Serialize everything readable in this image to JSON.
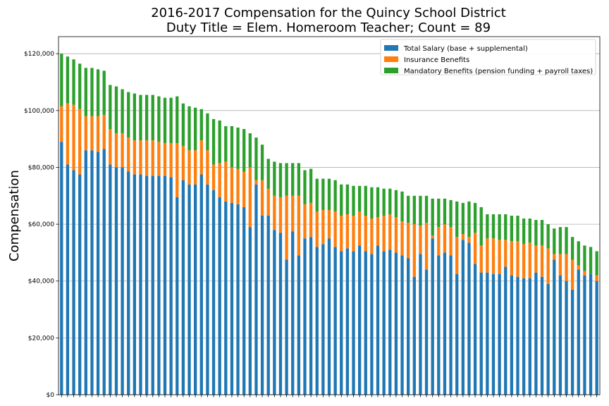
{
  "chart_data": {
    "type": "bar",
    "stacked": true,
    "title_line1": "2016-2017 Compensation for the Quincy School District",
    "title_line2": "Duty Title = Elem. Homeroom Teacher; Count = 89",
    "xlabel": "",
    "ylabel": "Compensation",
    "ylim": [
      0,
      126000
    ],
    "yticks": [
      0,
      20000,
      40000,
      60000,
      80000,
      100000,
      120000
    ],
    "ytick_labels": [
      "$0",
      "$20,000",
      "$40,000",
      "$60,000",
      "$80,000",
      "$100,000",
      "$120,000"
    ],
    "grid": "horizontal",
    "legend_position": "top-right",
    "colors": {
      "salary": "#1f77b4",
      "insurance": "#ff7f0e",
      "mandatory": "#2ca02c"
    },
    "series": [
      {
        "name": "Total Salary (base + supplemental)",
        "key": "salary",
        "values": [
          89000,
          81000,
          79000,
          77500,
          86000,
          86000,
          85500,
          86500,
          81000,
          80000,
          80000,
          78500,
          77500,
          77500,
          77000,
          77000,
          77000,
          77000,
          76500,
          69500,
          75500,
          74000,
          74000,
          77500,
          74000,
          72000,
          69500,
          68000,
          67500,
          67000,
          66000,
          59000,
          74000,
          63000,
          63000,
          58000,
          57000,
          47500,
          57500,
          49000,
          55000,
          55500,
          52000,
          53000,
          55000,
          52000,
          50500,
          51500,
          50500,
          52500,
          50500,
          49500,
          52500,
          50500,
          51000,
          50000,
          49000,
          48000,
          41500,
          49500,
          44000,
          55000,
          49000,
          50000,
          49000,
          42500,
          54500,
          53500,
          46000,
          43000,
          43000,
          42500,
          42500,
          45000,
          42000,
          41500,
          41000,
          41000,
          43000,
          41500,
          39000,
          47500,
          42000,
          40000,
          37000,
          44000,
          42000,
          42500,
          40000
        ]
      },
      {
        "name": "Insurance Benefits",
        "key": "insurance",
        "values": [
          12500,
          21500,
          23000,
          23000,
          12000,
          12000,
          12500,
          12000,
          12500,
          12000,
          12000,
          12000,
          12000,
          12000,
          12500,
          12500,
          12000,
          11500,
          12000,
          19000,
          12000,
          12000,
          12000,
          12000,
          12000,
          9000,
          12000,
          14000,
          12500,
          12500,
          12500,
          21000,
          1500,
          12500,
          9500,
          12000,
          12500,
          22500,
          12500,
          21000,
          12000,
          12000,
          12500,
          12000,
          10000,
          12500,
          12500,
          12000,
          12500,
          12000,
          12500,
          12500,
          10000,
          12500,
          12500,
          12500,
          12000,
          12500,
          18500,
          10000,
          16500,
          1000,
          10000,
          10000,
          10000,
          13000,
          2000,
          2000,
          11000,
          9500,
          12000,
          12500,
          12000,
          9500,
          12000,
          12500,
          12000,
          12500,
          9500,
          11000,
          12500,
          2000,
          7500,
          9500,
          10500,
          1500,
          1500,
          0,
          2000
        ]
      },
      {
        "name": "Mandatory Benefits (pension funding + payroll taxes)",
        "key": "mandatory",
        "values": [
          18500,
          16500,
          16000,
          16000,
          17000,
          17000,
          16500,
          15500,
          15500,
          16500,
          15500,
          16000,
          16500,
          16000,
          16000,
          16000,
          16000,
          16000,
          16000,
          16500,
          15000,
          15500,
          15000,
          11000,
          13000,
          16000,
          15000,
          12500,
          14500,
          14500,
          15000,
          12000,
          15000,
          12500,
          10500,
          12000,
          12000,
          11500,
          11500,
          11500,
          12000,
          12000,
          11500,
          11000,
          11000,
          11000,
          11000,
          10500,
          10500,
          9000,
          10500,
          11000,
          10500,
          9500,
          9000,
          9500,
          10500,
          9500,
          10000,
          10500,
          9500,
          13000,
          10000,
          9000,
          9500,
          12500,
          11000,
          12500,
          10500,
          13500,
          8500,
          8500,
          9000,
          9000,
          9000,
          9000,
          9000,
          8500,
          9000,
          9000,
          8500,
          9000,
          9500,
          9500,
          8000,
          8500,
          9000,
          9500,
          8500
        ]
      }
    ]
  }
}
